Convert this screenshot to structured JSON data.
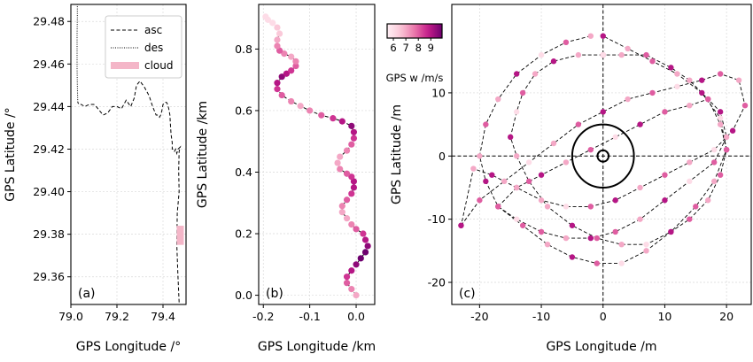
{
  "chart_data": [
    {
      "panel": "(a)",
      "type": "line",
      "xlabel": "GPS Longitude /°",
      "ylabel": "GPS Latitude /°",
      "xlim": [
        79.0,
        79.5
      ],
      "ylim": [
        29.347,
        29.488
      ],
      "xticks": [
        "79.0",
        "79.2",
        "79.4"
      ],
      "xtick_values": [
        79.0,
        79.2,
        79.4
      ],
      "yticks": [
        "29.36",
        "29.38",
        "29.40",
        "29.42",
        "29.44",
        "29.46",
        "29.48"
      ],
      "ytick_values": [
        29.36,
        29.38,
        29.4,
        29.42,
        29.44,
        29.46,
        29.48
      ],
      "grid": true,
      "legend": {
        "placement": "top-right",
        "entries": [
          "asc",
          "des",
          "cloud"
        ]
      },
      "series": [
        {
          "name": "asc",
          "style": "dashed",
          "color": "#000000",
          "x": [
            79.47,
            79.465,
            79.46,
            79.462,
            79.47,
            79.468,
            79.47,
            79.475,
            79.465,
            79.46,
            79.455,
            79.45,
            79.445,
            79.44,
            79.44,
            79.435,
            79.432,
            79.43,
            79.425,
            79.42,
            79.415,
            79.41,
            79.4,
            79.395,
            79.39,
            79.385,
            79.38,
            79.37,
            79.355,
            79.34,
            79.32,
            79.3,
            79.285,
            79.275,
            79.26,
            79.24,
            79.22,
            79.2,
            79.18,
            79.16,
            79.14,
            79.125,
            79.11,
            79.1,
            79.08,
            79.06,
            79.045,
            79.035,
            79.03
          ],
          "y": [
            29.348,
            29.36,
            29.375,
            29.39,
            29.4,
            29.41,
            29.419,
            29.421,
            29.42,
            29.418,
            29.42,
            29.419,
            29.42,
            29.42,
            29.423,
            29.427,
            29.432,
            29.436,
            29.439,
            29.441,
            29.442,
            29.442,
            29.441,
            29.438,
            29.436,
            29.435,
            29.436,
            29.436,
            29.44,
            29.445,
            29.449,
            29.452,
            29.45,
            29.444,
            29.44,
            29.443,
            29.439,
            29.44,
            29.44,
            29.437,
            29.436,
            29.438,
            29.44,
            29.441,
            29.441,
            29.44,
            29.441,
            29.441,
            29.442
          ]
        },
        {
          "name": "des",
          "style": "dotted",
          "color": "#000000",
          "x": [
            79.03,
            79.028,
            79.027,
            79.027,
            79.027,
            79.028,
            79.028
          ],
          "y": [
            29.442,
            29.45,
            29.458,
            29.466,
            29.474,
            29.482,
            29.488
          ]
        },
        {
          "name": "cloud",
          "style": "band",
          "color": "#f4b6c8",
          "x": [
            79.475,
            79.475
          ],
          "y": [
            29.375,
            29.384
          ]
        }
      ]
    },
    {
      "panel": "(b)",
      "type": "scatter",
      "xlabel": "GPS Longitude /km",
      "ylabel": "GPS Latitude /km",
      "xlim": [
        -0.21,
        0.04
      ],
      "ylim": [
        -0.03,
        0.945
      ],
      "xticks": [
        "-0.2",
        "-0.1",
        "0.0"
      ],
      "xtick_values": [
        -0.2,
        -0.1,
        0.0
      ],
      "yticks": [
        "0.0",
        "0.2",
        "0.4",
        "0.6",
        "0.8"
      ],
      "ytick_values": [
        0.0,
        0.2,
        0.4,
        0.6,
        0.8
      ],
      "grid": true,
      "path": {
        "x": [
          0.0,
          -0.01,
          -0.02,
          -0.02,
          -0.01,
          0.0,
          0.01,
          0.02,
          0.025,
          0.02,
          0.015,
          0.0,
          -0.01,
          -0.02,
          -0.03,
          -0.03,
          -0.02,
          -0.01,
          -0.005,
          -0.005,
          -0.01,
          -0.02,
          -0.035,
          -0.04,
          -0.035,
          -0.02,
          -0.01,
          -0.005,
          -0.005,
          -0.01,
          -0.03,
          -0.05,
          -0.075,
          -0.1,
          -0.12,
          -0.14,
          -0.16,
          -0.17,
          -0.17,
          -0.16,
          -0.15,
          -0.14,
          -0.13,
          -0.13,
          -0.14,
          -0.155,
          -0.165,
          -0.17,
          -0.17,
          -0.165,
          -0.17,
          -0.18,
          -0.19,
          -0.195
        ],
        "y": [
          0.0,
          0.02,
          0.04,
          0.06,
          0.08,
          0.1,
          0.12,
          0.14,
          0.16,
          0.18,
          0.2,
          0.215,
          0.23,
          0.25,
          0.27,
          0.29,
          0.31,
          0.33,
          0.35,
          0.37,
          0.385,
          0.395,
          0.41,
          0.43,
          0.45,
          0.47,
          0.49,
          0.51,
          0.53,
          0.55,
          0.565,
          0.575,
          0.585,
          0.6,
          0.615,
          0.63,
          0.65,
          0.67,
          0.69,
          0.71,
          0.72,
          0.73,
          0.745,
          0.76,
          0.775,
          0.785,
          0.795,
          0.81,
          0.83,
          0.85,
          0.87,
          0.885,
          0.895,
          0.905
        ],
        "w": [
          7,
          7.5,
          8,
          8.5,
          9,
          9.5,
          10,
          10,
          9.5,
          9,
          8.5,
          8,
          7.5,
          7,
          7,
          7.5,
          8,
          8.5,
          9,
          9,
          8.5,
          8,
          7.5,
          7,
          7,
          7.5,
          8,
          8.5,
          9,
          9.5,
          9,
          8.5,
          8,
          7.5,
          7,
          7.5,
          8,
          8.5,
          9,
          9.5,
          9,
          8.5,
          8,
          7.5,
          7,
          7.5,
          8,
          7.5,
          7,
          6.5,
          6.5,
          6,
          6,
          6
        ]
      }
    },
    {
      "panel": "(c)",
      "type": "scatter",
      "xlabel": "GPS Longitude /m",
      "ylabel": "GPS Latitude /m",
      "xlim": [
        -24.5,
        24.0
      ],
      "ylim": [
        -23.5,
        24.0
      ],
      "xticks": [
        "-20",
        "-10",
        "0",
        "10",
        "20"
      ],
      "xtick_values": [
        -20,
        -10,
        0,
        10,
        20
      ],
      "yticks": [
        "-20",
        "-10",
        "0",
        "10"
      ],
      "ytick_values": [
        -20,
        -10,
        0,
        10
      ],
      "grid": true,
      "colorbar": {
        "label": "GPS w /m/s",
        "ticks": [
          "6",
          "7",
          "8",
          "9"
        ],
        "tick_values": [
          6,
          7,
          8,
          9
        ],
        "range": [
          5.5,
          9.9
        ]
      },
      "circles": [
        {
          "cx": 0,
          "cy": 0,
          "r": 5
        },
        {
          "cx": 0,
          "cy": 0,
          "r": 0.9
        }
      ],
      "loops": [
        {
          "x": [
            0,
            -4,
            -8,
            -11,
            -13,
            -14,
            -15,
            -14,
            -12,
            -9,
            -5,
            -1,
            3,
            7,
            11,
            14,
            17,
            19,
            20,
            19,
            17,
            14,
            11,
            7,
            3,
            0
          ],
          "y": [
            16,
            16,
            15,
            13,
            10,
            7,
            3,
            0,
            -4,
            -8,
            -11,
            -13,
            -14,
            -14,
            -12,
            -10,
            -7,
            -3,
            1,
            5,
            9,
            12,
            14,
            16,
            16,
            16
          ],
          "w": [
            8,
            7,
            9,
            7,
            8,
            6,
            9,
            7,
            8,
            7,
            9,
            8,
            7,
            6,
            9,
            8,
            7,
            8,
            9,
            7,
            8,
            7,
            9,
            8,
            7,
            6
          ]
        },
        {
          "x": [
            -2,
            -6,
            -10,
            -14,
            -17,
            -19,
            -20,
            -19,
            -17,
            -13,
            -9,
            -5,
            -1,
            3,
            7,
            11,
            15,
            18,
            20,
            19,
            16,
            12,
            8,
            4,
            0
          ],
          "y": [
            19,
            18,
            16,
            13,
            9,
            5,
            0,
            -4,
            -8,
            -11,
            -14,
            -16,
            -17,
            -17,
            -15,
            -12,
            -8,
            -4,
            1,
            6,
            10,
            13,
            15,
            17,
            19
          ],
          "w": [
            7,
            8,
            6,
            9,
            7,
            8,
            7,
            9,
            6,
            8,
            7,
            9,
            8,
            6,
            7,
            9,
            8,
            7,
            8,
            6,
            9,
            7,
            8,
            7,
            9
          ]
        },
        {
          "x": [
            -23,
            -20,
            -16,
            -12,
            -8,
            -4,
            0,
            4,
            8,
            12,
            16,
            19,
            22,
            23,
            21,
            18,
            14,
            10,
            6,
            2,
            -2,
            -6,
            -10,
            -14,
            -18,
            -21,
            -23
          ],
          "y": [
            -11,
            -7,
            -4,
            -1,
            2,
            5,
            7,
            9,
            10,
            11,
            12,
            13,
            12,
            8,
            4,
            1,
            -1,
            -3,
            -5,
            -7,
            -8,
            -8,
            -7,
            -5,
            -3,
            -2,
            -11
          ],
          "w": [
            9,
            8,
            7,
            6,
            7,
            8,
            9,
            7,
            8,
            6,
            9,
            8,
            7,
            8,
            9,
            6,
            7,
            8,
            7,
            9,
            8,
            6,
            7,
            8,
            9,
            7,
            9
          ]
        },
        {
          "x": [
            -17,
            -14,
            -10,
            -6,
            -2,
            2,
            6,
            10,
            14,
            17,
            19,
            20,
            18,
            14,
            10,
            6,
            2,
            -2,
            -6,
            -10,
            -14,
            -17
          ],
          "y": [
            -8,
            -5,
            -3,
            -1,
            1,
            3,
            5,
            7,
            8,
            9,
            7,
            3,
            -1,
            -4,
            -7,
            -10,
            -12,
            -13,
            -13,
            -12,
            -10,
            -8
          ],
          "w": [
            8,
            7,
            9,
            7,
            8,
            6,
            9,
            8,
            7,
            8,
            9,
            7,
            8,
            6,
            9,
            7,
            8,
            9,
            7,
            8,
            6,
            8
          ]
        }
      ]
    }
  ]
}
